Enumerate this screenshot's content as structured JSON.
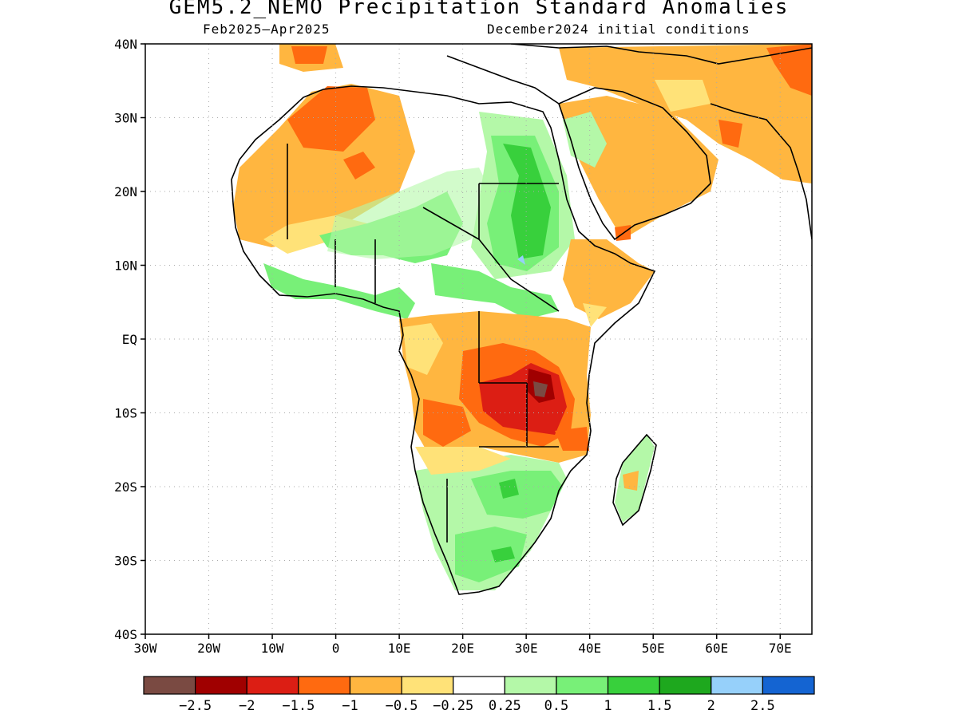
{
  "title": "GEM5.2_NEMO Precipitation Standard Anomalies",
  "subtitle_left": "Feb2025–Apr2025",
  "subtitle_right": "December2024 initial conditions",
  "map": {
    "lon_range": [
      -30,
      75
    ],
    "lat_range": [
      -40,
      40
    ],
    "lat_labels": [
      "40N",
      "30N",
      "20N",
      "10N",
      "EQ",
      "10S",
      "20S",
      "30S",
      "40S"
    ],
    "lat_values": [
      40,
      30,
      20,
      10,
      0,
      -10,
      -20,
      -30,
      -40
    ],
    "lon_labels": [
      "30W",
      "20W",
      "10W",
      "0",
      "10E",
      "20E",
      "30E",
      "40E",
      "50E",
      "60E",
      "70E"
    ],
    "lon_values": [
      -30,
      -20,
      -10,
      0,
      10,
      20,
      30,
      40,
      50,
      60,
      70
    ],
    "grid": "dotted"
  },
  "colorbar": {
    "colors": [
      "#7a4a42",
      "#a00000",
      "#dc1e14",
      "#ff6a10",
      "#ffb640",
      "#ffe278",
      "#ffffff",
      "#b4f8a8",
      "#78f078",
      "#38d03c",
      "#1ea81e",
      "#96d0fa",
      "#1464d2"
    ],
    "labels": [
      "−2.5",
      "−2",
      "−1.5",
      "−1",
      "−0.5",
      "−0.25",
      "0.25",
      "0.5",
      "1",
      "1.5",
      "2",
      "2.5"
    ]
  }
}
